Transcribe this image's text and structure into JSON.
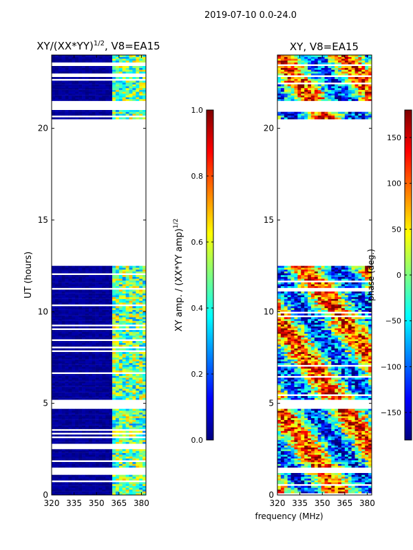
{
  "figure_title": "2019-07-10 0.0-24.0",
  "shared_xlabel": "frequency (MHz)",
  "colors": {
    "jet": [
      "#00007f",
      "#0000ff",
      "#007fff",
      "#00ffff",
      "#7fff7f",
      "#ffff00",
      "#ff7f00",
      "#ff0000",
      "#7f0000"
    ],
    "background": "#ffffff",
    "axis": "#000000"
  },
  "chart_data": [
    {
      "type": "heatmap",
      "name": "amplitude-ratio",
      "title": "XY/(XX*YY)^1/2, V8=EA15",
      "title_parts": {
        "base": "XY/(XX*YY)",
        "sup": "1/2",
        "suffix": ", V8=EA15"
      },
      "xlabel": "",
      "ylabel": "UT (hours)",
      "xlim": [
        320,
        383
      ],
      "ylim": [
        0,
        24
      ],
      "xticks": [
        320,
        335,
        350,
        365,
        380
      ],
      "yticks": [
        0,
        5,
        10,
        15,
        20
      ],
      "colorbar": {
        "label": "XY amp. / (XX*YY amp)^1/2",
        "label_parts": {
          "base": "XY amp. / (XX*YY amp)",
          "sup": "1/2"
        },
        "range": [
          0.0,
          1.0
        ],
        "ticks": [
          "0.0",
          "0.2",
          "0.4",
          "0.6",
          "0.8",
          "1.0"
        ],
        "tick_values": [
          0.0,
          0.2,
          0.4,
          0.6,
          0.8,
          1.0
        ]
      },
      "data_bands_hours": [
        [
          0.0,
          12.5
        ],
        [
          20.5,
          24.0
        ]
      ],
      "gap_hours": [
        [
          0.3,
          0.35
        ],
        [
          0.75,
          0.85
        ],
        [
          1.2,
          1.5
        ],
        [
          2.5,
          2.75
        ],
        [
          3.1,
          3.2
        ],
        [
          4.7,
          5.2
        ],
        [
          12.5,
          20.5
        ],
        [
          21.0,
          21.5
        ],
        [
          22.8,
          23.0
        ],
        [
          23.4,
          23.5
        ]
      ],
      "bright_band_mhz": [
        360,
        383
      ],
      "typical_value_low_freq": 0.05,
      "typical_value_high_freq": 0.5
    },
    {
      "type": "heatmap",
      "name": "phase",
      "title": "XY, V8=EA15",
      "xlabel": "frequency (MHz)",
      "ylabel": "",
      "xlim": [
        320,
        383
      ],
      "ylim": [
        0,
        24
      ],
      "xticks": [
        320,
        335,
        350,
        365,
        380
      ],
      "yticks": [
        0,
        5,
        10,
        15,
        20
      ],
      "colorbar": {
        "label": "phase (deg.)",
        "range": [
          -180,
          180
        ],
        "ticks": [
          "−150",
          "−100",
          "−50",
          "0",
          "50",
          "100",
          "150"
        ],
        "tick_values": [
          -150,
          -100,
          -50,
          0,
          50,
          100,
          150
        ]
      },
      "data_bands_hours": [
        [
          0.0,
          12.5
        ],
        [
          20.5,
          24.0
        ]
      ],
      "gap_hours": [
        [
          0.3,
          0.35
        ],
        [
          1.2,
          1.5
        ],
        [
          4.7,
          5.2
        ],
        [
          12.5,
          20.5
        ],
        [
          21.0,
          21.5
        ],
        [
          23.4,
          23.5
        ]
      ]
    }
  ]
}
